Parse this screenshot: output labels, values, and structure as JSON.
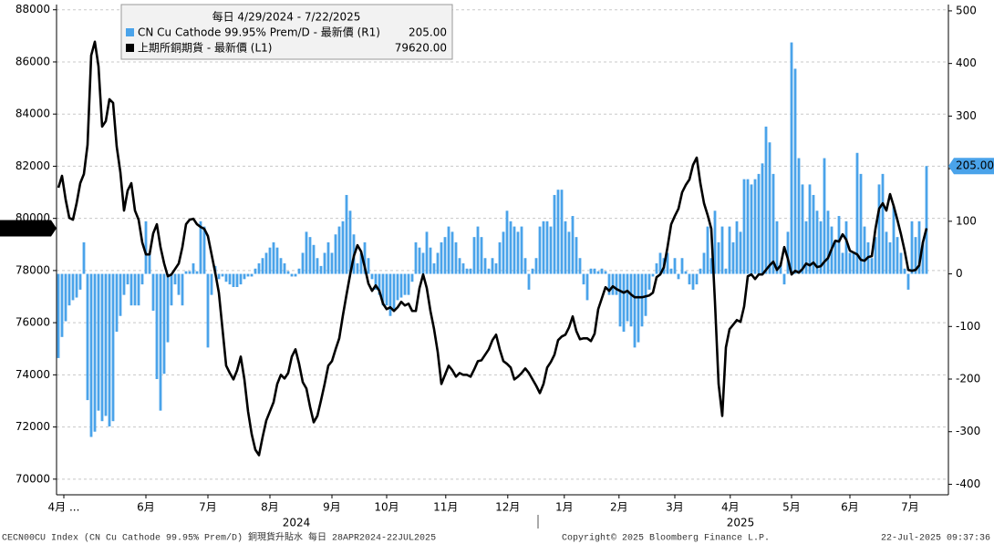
{
  "chart_data": {
    "type": "combo",
    "legend_title": "每日 4/29/2024 - 7/22/2025",
    "xlim": [
      0,
      238
    ],
    "xticks": [
      {
        "value": 1.5,
        "label": "4月 ..."
      },
      {
        "value": 24,
        "label": "6月"
      },
      {
        "value": 41,
        "label": "7月"
      },
      {
        "value": 58,
        "label": "8月"
      },
      {
        "value": 75,
        "label": "9月"
      },
      {
        "value": 90,
        "label": "10月"
      },
      {
        "value": 106.2,
        "label": "11月"
      },
      {
        "value": 123.2,
        "label": "12月"
      },
      {
        "value": 138.7,
        "label": "1月"
      },
      {
        "value": 153.7,
        "label": "2月"
      },
      {
        "value": 169,
        "label": "3月"
      },
      {
        "value": 184.2,
        "label": "4月"
      },
      {
        "value": 201,
        "label": "5月"
      },
      {
        "value": 217,
        "label": "6月"
      },
      {
        "value": 233.5,
        "label": "7月"
      }
    ],
    "year_labels": [
      {
        "value": 65.25,
        "label": "2024"
      },
      {
        "value": 187,
        "label": "2025"
      }
    ],
    "ylim": [
      69400,
      88200
    ],
    "yticks": [
      70000,
      72000,
      74000,
      76000,
      78000,
      80000,
      82000,
      84000,
      86000,
      88000
    ],
    "y2lim": [
      -420,
      512
    ],
    "y2ticks": [
      -400,
      -300,
      -200,
      -100,
      0,
      100,
      200,
      300,
      400,
      500
    ],
    "grid": true,
    "series": [
      {
        "name": "CN Cu Cathode 99.95% Prem/D - 最新價 (R1)",
        "type": "bar",
        "axis": "y2",
        "color": "#4aa3ea",
        "values": [
          -160,
          -120,
          -90,
          -60,
          -50,
          -45,
          -30,
          60,
          -240,
          -310,
          -300,
          -260,
          -280,
          -270,
          -290,
          -280,
          -110,
          -80,
          -40,
          -20,
          -60,
          -60,
          -60,
          -20,
          100,
          40,
          -70,
          -200,
          -260,
          -190,
          -130,
          -60,
          -20,
          -40,
          -60,
          5,
          5,
          20,
          5,
          100,
          90,
          -140,
          -40,
          15,
          -10,
          -5,
          -15,
          -20,
          -25,
          -25,
          -20,
          -10,
          -5,
          -5,
          10,
          20,
          30,
          40,
          50,
          60,
          50,
          30,
          20,
          5,
          -5,
          -5,
          10,
          40,
          80,
          70,
          55,
          30,
          15,
          40,
          60,
          40,
          75,
          90,
          100,
          150,
          120,
          75,
          20,
          40,
          60,
          30,
          -10,
          -30,
          -40,
          -60,
          -60,
          -80,
          -70,
          -50,
          -45,
          -40,
          -40,
          -15,
          60,
          50,
          40,
          80,
          50,
          20,
          40,
          60,
          70,
          90,
          80,
          60,
          30,
          20,
          10,
          10,
          70,
          90,
          70,
          30,
          10,
          30,
          20,
          60,
          80,
          120,
          100,
          90,
          80,
          90,
          30,
          -30,
          10,
          30,
          90,
          100,
          100,
          90,
          150,
          160,
          160,
          100,
          80,
          110,
          70,
          30,
          -20,
          -50,
          10,
          10,
          5,
          10,
          5,
          -40,
          -40,
          -40,
          -100,
          -110,
          -90,
          -100,
          -140,
          -130,
          -100,
          -80,
          -30,
          -5,
          20,
          40,
          30,
          40,
          10,
          30,
          -10,
          30,
          5,
          -20,
          -30,
          -20,
          10,
          40,
          90,
          30,
          120,
          60,
          90,
          10,
          90,
          60,
          100,
          80,
          180,
          180,
          170,
          180,
          190,
          210,
          280,
          250,
          190,
          100,
          20,
          -20,
          80,
          440,
          390,
          220,
          170,
          100,
          170,
          150,
          120,
          100,
          220,
          120,
          90,
          60,
          110,
          40,
          100,
          40,
          40,
          230,
          190,
          90,
          60,
          30,
          70,
          170,
          190,
          80,
          60,
          130,
          70,
          40,
          10,
          -30,
          100,
          70,
          100,
          60,
          205
        ],
        "value_labels": [
          null,
          null,
          null,
          null,
          null,
          null,
          null,
          null,
          null,
          null,
          null,
          null,
          null,
          null,
          null,
          null,
          null,
          null,
          null,
          null,
          null,
          null,
          null,
          null,
          null,
          null,
          null,
          null,
          null,
          null,
          null,
          null,
          null,
          null,
          null,
          null,
          null,
          null,
          null,
          null,
          null,
          null,
          null,
          null,
          null,
          null,
          null,
          null,
          null,
          null,
          null,
          null,
          null,
          null,
          null,
          null,
          null,
          null,
          null,
          null,
          null,
          null,
          null,
          null,
          null,
          null,
          null,
          null,
          null,
          null,
          null,
          null,
          null,
          null,
          null,
          null,
          null,
          null,
          null,
          null,
          null,
          null,
          null,
          null,
          null,
          null,
          null,
          null,
          null,
          null,
          null,
          null,
          null,
          null,
          null,
          null,
          null,
          null,
          null,
          null,
          null,
          null,
          null,
          null,
          null,
          null,
          null,
          null,
          null,
          null,
          null,
          null,
          null,
          null,
          null,
          null,
          null,
          null,
          null,
          null,
          null,
          null,
          null,
          null,
          null,
          null,
          null,
          null,
          null,
          null,
          null,
          null,
          null,
          null,
          null,
          null,
          null,
          null,
          null,
          null,
          null,
          null,
          null,
          null,
          null,
          null,
          null,
          null,
          null,
          null,
          null,
          null,
          null,
          null,
          null,
          null,
          null,
          null,
          null,
          null,
          null,
          null,
          null,
          null,
          null,
          null,
          null,
          null,
          null,
          null,
          null,
          null,
          null,
          null,
          null,
          null,
          null,
          null,
          null,
          null,
          null,
          null,
          null,
          null,
          null,
          null,
          null,
          null,
          null,
          null,
          null,
          null,
          null,
          null,
          null,
          null,
          null,
          null,
          null,
          null,
          null,
          null,
          null,
          null,
          null,
          null,
          null,
          null,
          null,
          null,
          null,
          null,
          null,
          null,
          null,
          null,
          null,
          null,
          null,
          null,
          null,
          null,
          null,
          null,
          null,
          null,
          null,
          null,
          null,
          null,
          null,
          null,
          null,
          null,
          null,
          null,
          null,
          null,
          "205.00"
        ]
      },
      {
        "name": "上期所銅期貨 - 最新價 (L1)",
        "type": "line",
        "axis": "y",
        "color": "#000000",
        "values": [
          81175,
          81630,
          80720,
          80020,
          79950,
          80580,
          81350,
          81700,
          82820,
          86250,
          86775,
          85830,
          83520,
          83730,
          84570,
          84430,
          82750,
          81770,
          80300,
          81070,
          81350,
          80300,
          79950,
          79075,
          78620,
          78620,
          79425,
          79775,
          78900,
          78270,
          77780,
          77850,
          78060,
          78270,
          78900,
          79775,
          79950,
          79985,
          79775,
          79670,
          79600,
          79320,
          78620,
          77920,
          77150,
          75750,
          74350,
          74070,
          73825,
          74175,
          74700,
          73825,
          72600,
          71725,
          71130,
          70920,
          71620,
          72250,
          72600,
          72950,
          73650,
          74000,
          73860,
          74070,
          74700,
          74980,
          74420,
          73720,
          73475,
          72775,
          72180,
          72425,
          73020,
          73650,
          74350,
          74525,
          74980,
          75400,
          76275,
          77080,
          77850,
          78550,
          78970,
          78725,
          78130,
          77500,
          77220,
          77430,
          77220,
          76730,
          76520,
          76590,
          76450,
          76590,
          76800,
          76660,
          76730,
          76450,
          76450,
          77325,
          77850,
          77325,
          76450,
          75750,
          74875,
          73650,
          74000,
          74350,
          74175,
          73930,
          74070,
          74000,
          74000,
          73930,
          74210,
          74525,
          74560,
          74770,
          74980,
          75330,
          75540,
          74980,
          74525,
          74420,
          74280,
          73825,
          73930,
          74070,
          74245,
          74070,
          73825,
          73580,
          73300,
          73650,
          74280,
          74490,
          74770,
          75330,
          75470,
          75540,
          75820,
          76240,
          75680,
          75365,
          75400,
          75400,
          75295,
          75575,
          76520,
          76940,
          77360,
          77220,
          77395,
          77290,
          77220,
          77150,
          77220,
          77080,
          76975,
          76975,
          76975,
          77010,
          77045,
          77150,
          77745,
          77850,
          78130,
          78900,
          79775,
          80090,
          80370,
          81000,
          81280,
          81490,
          82050,
          82330,
          81350,
          80580,
          80125,
          79600,
          76800,
          73650,
          72425,
          75050,
          75750,
          75925,
          76100,
          76030,
          76625,
          77780,
          77850,
          77675,
          77850,
          77850,
          78025,
          78200,
          78340,
          78025,
          78200,
          78900,
          78445,
          77850,
          77990,
          77920,
          78060,
          78270,
          78200,
          78305,
          78130,
          78165,
          78340,
          78480,
          78830,
          79145,
          79110,
          79390,
          79180,
          78760,
          78690,
          78620,
          78410,
          78375,
          78515,
          78550,
          79600,
          80370,
          80580,
          80300,
          80930,
          80475,
          79950,
          79390,
          78760,
          78025,
          77990,
          78025,
          78200,
          79075,
          79620
        ],
        "value_labels": [
          null,
          null,
          null,
          null,
          null,
          null,
          null,
          null,
          null,
          null,
          null,
          null,
          null,
          null,
          null,
          null,
          null,
          null,
          null,
          null,
          null,
          null,
          null,
          null,
          null,
          null,
          null,
          null,
          null,
          null,
          null,
          null,
          null,
          null,
          null,
          null,
          null,
          null,
          null,
          null,
          null,
          null,
          null,
          null,
          null,
          null,
          null,
          null,
          null,
          null,
          null,
          null,
          null,
          null,
          null,
          null,
          null,
          null,
          null,
          null,
          null,
          null,
          null,
          null,
          null,
          null,
          null,
          null,
          null,
          null,
          null,
          null,
          null,
          null,
          null,
          null,
          null,
          null,
          null,
          null,
          null,
          null,
          null,
          null,
          null,
          null,
          null,
          null,
          null,
          null,
          null,
          null,
          null,
          null,
          null,
          null,
          null,
          null,
          null,
          null,
          null,
          null,
          null,
          null,
          null,
          null,
          null,
          null,
          null,
          null,
          null,
          null,
          null,
          null,
          null,
          null,
          null,
          null,
          null,
          null,
          null,
          null,
          null,
          null,
          null,
          null,
          null,
          null,
          null,
          null,
          null,
          null,
          null,
          null,
          null,
          null,
          null,
          null,
          null,
          null,
          null,
          null,
          null,
          null,
          null,
          null,
          null,
          null,
          null,
          null,
          null,
          null,
          null,
          null,
          null,
          null,
          null,
          null,
          null,
          null,
          null,
          null,
          null,
          null,
          null,
          null,
          null,
          null,
          null,
          null,
          null,
          null,
          null,
          null,
          null,
          null,
          null,
          null,
          null,
          null,
          null,
          null,
          null,
          null,
          null,
          null,
          null,
          null,
          null,
          null,
          null,
          null,
          null,
          null,
          null,
          null,
          null,
          null,
          null,
          null,
          null,
          null,
          null,
          null,
          null,
          null,
          null,
          null,
          null,
          null,
          null,
          null,
          null,
          null,
          null,
          null,
          null,
          null,
          null,
          null,
          null,
          null,
          null,
          null,
          null,
          null,
          null,
          null,
          null,
          null,
          null,
          null,
          null,
          null,
          null,
          null,
          null,
          null,
          "79620.00"
        ]
      }
    ],
    "footer": {
      "left": "CECN00CU Index (CN Cu Cathode 99.95% Prem/D) 銅現貨升貼水  每日 28APR2024-22JUL2025",
      "center": "Copyright© 2025 Bloomberg Finance L.P.",
      "right": "22-Jul-2025 09:37:36"
    }
  }
}
